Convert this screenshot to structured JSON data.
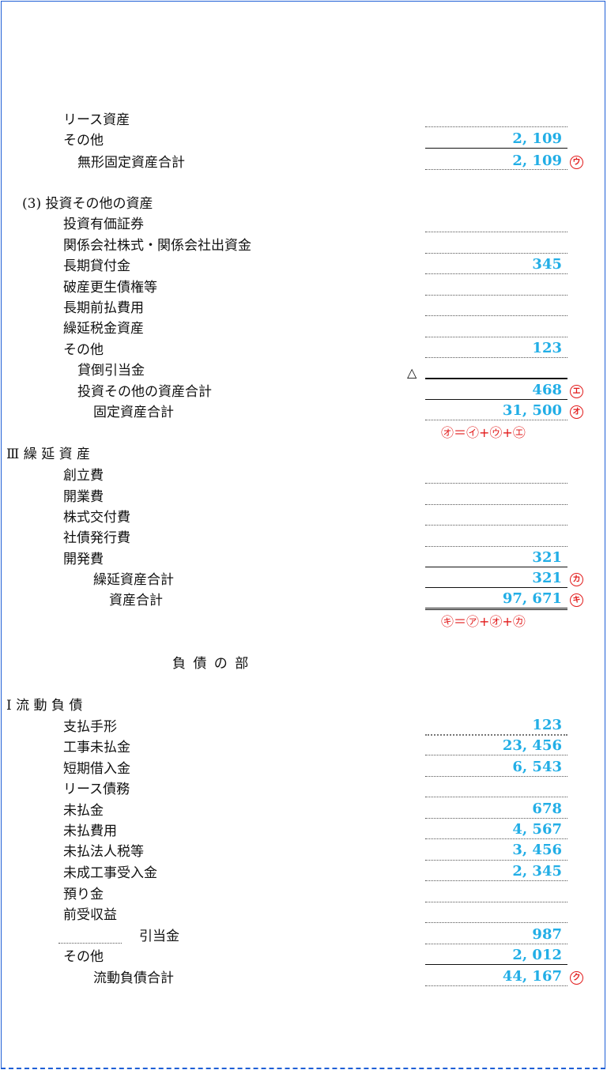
{
  "section_a": {
    "lease_assets": "リース資産",
    "other1": "その他",
    "other1_amount": "2, 109",
    "intangible_total": "無形固定資産合計",
    "intangible_total_amount": "2, 109",
    "mark_u": "ウ"
  },
  "section_b": {
    "heading": "(3) 投資その他の資産",
    "items": [
      {
        "label": "投資有価証券",
        "amount": ""
      },
      {
        "label": "関係会社株式・関係会社出資金",
        "amount": ""
      },
      {
        "label": "長期貸付金",
        "amount": "345"
      },
      {
        "label": "破産更生債権等",
        "amount": ""
      },
      {
        "label": "長期前払費用",
        "amount": ""
      },
      {
        "label": "繰延税金資産",
        "amount": ""
      },
      {
        "label": "その他",
        "amount": "123"
      }
    ],
    "allowance": "貸倒引当金",
    "allowance_prefix": "△",
    "investment_total": "投資その他の資産合計",
    "investment_total_amount": "468",
    "mark_e": "エ",
    "fixed_total": "固定資産合計",
    "fixed_total_amount": "31, 500",
    "mark_o": "オ",
    "formula_o": "㋔＝㋑+㋒+㋓"
  },
  "section_c": {
    "heading": "Ⅲ 繰 延 資 産",
    "items": [
      {
        "label": "創立費",
        "amount": ""
      },
      {
        "label": "開業費",
        "amount": ""
      },
      {
        "label": "株式交付費",
        "amount": ""
      },
      {
        "label": "社債発行費",
        "amount": ""
      },
      {
        "label": "開発費",
        "amount": "321"
      }
    ],
    "deferred_total": "繰延資産合計",
    "deferred_total_amount": "321",
    "mark_ka": "カ",
    "asset_total": "資産合計",
    "asset_total_amount": "97, 671",
    "mark_ki": "キ",
    "formula_ki": "㋖＝㋐+㋔+㋕"
  },
  "liabilities": {
    "part_title": "負 債 の 部",
    "heading": "Ⅰ 流 動 負 債",
    "items": [
      {
        "label": "支払手形",
        "amount": "123"
      },
      {
        "label": "工事未払金",
        "amount": "23, 456"
      },
      {
        "label": "短期借入金",
        "amount": "6, 543"
      },
      {
        "label": "リース債務",
        "amount": ""
      },
      {
        "label": "未払金",
        "amount": "678"
      },
      {
        "label": "未払費用",
        "amount": "4, 567"
      },
      {
        "label": "未払法人税等",
        "amount": "3, 456"
      },
      {
        "label": "未成工事受入金",
        "amount": "2, 345"
      },
      {
        "label": "預り金",
        "amount": ""
      },
      {
        "label": "前受収益",
        "amount": ""
      },
      {
        "label": "引当金",
        "amount": "987"
      },
      {
        "label": "その他",
        "amount": "2, 012"
      }
    ],
    "current_total": "流動負債合計",
    "current_total_amount": "44, 167",
    "mark_ku": "ク"
  }
}
